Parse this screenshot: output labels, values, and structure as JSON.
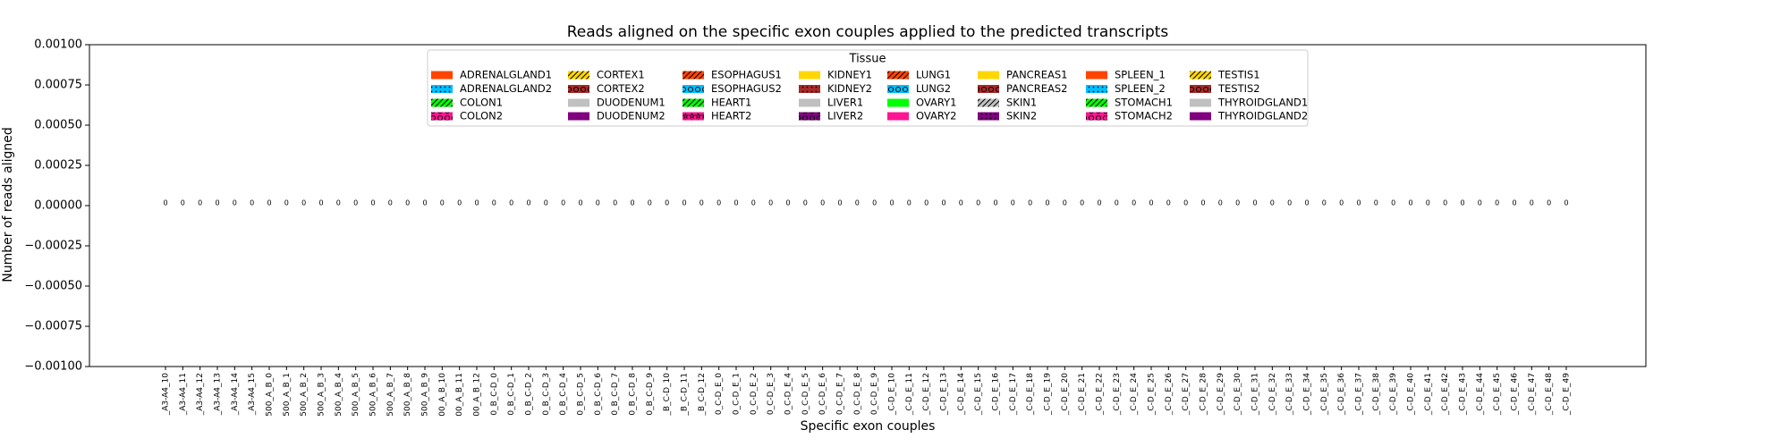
{
  "chart_data": {
    "type": "bar",
    "title": "Reads aligned on the specific exon couples applied to the predicted transcripts",
    "x_label": "Specific exon couples",
    "y_label": "Number of reads aligned",
    "categories": [
      "_A3-A4_10",
      "_A3-A4_11",
      "_A3-A4_12",
      "_A3-A4_13",
      "_A3-A4_14",
      "_A3-A4_15",
      "500_A_B_0",
      "500_A_B_1",
      "500_A_B_2",
      "500_A_B_3",
      "500_A_B_4",
      "500_A_B_5",
      "500_A_B_6",
      "500_A_B_7",
      "500_A_B_8",
      "500_A_B_9",
      "00_A_B_10",
      "00_A_B_11",
      "00_A_B_12",
      "0_B_C-D_0",
      "0_B_C-D_1",
      "0_B_C-D_2",
      "0_B_C-D_3",
      "0_B_C-D_4",
      "0_B_C-D_5",
      "0_B_C-D_6",
      "0_B_C-D_7",
      "0_B_C-D_8",
      "0_B_C-D_9",
      "_B_C-D_10",
      "_B_C-D_11",
      "_B_C-D_12",
      "0_C-D_E_0",
      "0_C-D_E_1",
      "0_C-D_E_2",
      "0_C-D_E_3",
      "0_C-D_E_4",
      "0_C-D_E_5",
      "0_C-D_E_6",
      "0_C-D_E_7",
      "0_C-D_E_8",
      "0_C-D_E_9",
      "_C-D_E_10",
      "_C-D_E_11",
      "_C-D_E_12",
      "_C-D_E_13",
      "_C-D_E_14",
      "_C-D_E_15",
      "_C-D_E_16",
      "_C-D_E_17",
      "_C-D_E_18",
      "_C-D_E_19",
      "_C-D_E_20",
      "_C-D_E_21",
      "_C-D_E_22",
      "_C-D_E_23",
      "_C-D_E_24",
      "_C-D_E_25",
      "_C-D_E_26",
      "_C-D_E_27",
      "_C-D_E_28",
      "_C-D_E_29",
      "_C-D_E_30",
      "_C-D_E_31",
      "_C-D_E_32",
      "_C-D_E_33",
      "_C-D_E_34",
      "_C-D_E_35",
      "_C-D_E_36",
      "_C-D_E_37",
      "_C-D_E_38",
      "_C-D_E_39",
      "_C-D_E_40",
      "_C-D_E_41",
      "_C-D_E_42",
      "_C-D_E_43",
      "_C-D_E_44",
      "_C-D_E_45",
      "_C-D_E_46",
      "_C-D_E_47",
      "_C-D_E_48",
      "_C-D_E_49"
    ],
    "values": [
      0,
      0,
      0,
      0,
      0,
      0,
      0,
      0,
      0,
      0,
      0,
      0,
      0,
      0,
      0,
      0,
      0,
      0,
      0,
      0,
      0,
      0,
      0,
      0,
      0,
      0,
      0,
      0,
      0,
      0,
      0,
      0,
      0,
      0,
      0,
      0,
      0,
      0,
      0,
      0,
      0,
      0,
      0,
      0,
      0,
      0,
      0,
      0,
      0,
      0,
      0,
      0,
      0,
      0,
      0,
      0,
      0,
      0,
      0,
      0,
      0,
      0,
      0,
      0,
      0,
      0,
      0,
      0,
      0,
      0,
      0,
      0,
      0,
      0,
      0,
      0,
      0,
      0,
      0,
      0,
      0,
      0
    ],
    "value_labels": [
      "0",
      "0",
      "0",
      "0",
      "0",
      "0",
      "0",
      "0",
      "0",
      "0",
      "0",
      "0",
      "0",
      "0",
      "0",
      "0",
      "0",
      "0",
      "0",
      "0",
      "0",
      "0",
      "0",
      "0",
      "0",
      "0",
      "0",
      "0",
      "0",
      "0",
      "0",
      "0",
      "0",
      "0",
      "0",
      "0",
      "0",
      "0",
      "0",
      "0",
      "0",
      "0",
      "0",
      "0",
      "0",
      "0",
      "0",
      "0",
      "0",
      "0",
      "0",
      "0",
      "0",
      "0",
      "0",
      "0",
      "0",
      "0",
      "0",
      "0",
      "0",
      "0",
      "0",
      "0",
      "0",
      "0",
      "0",
      "0",
      "0",
      "0",
      "0",
      "0",
      "0",
      "0",
      "0",
      "0",
      "0",
      "0",
      "0",
      "0",
      "0",
      "0"
    ],
    "ylim": [
      -0.001,
      0.001
    ],
    "yticks": [
      {
        "value": -0.001,
        "label": "−0.00100"
      },
      {
        "value": -0.00075,
        "label": "−0.00075"
      },
      {
        "value": -0.0005,
        "label": "−0.00050"
      },
      {
        "value": -0.00025,
        "label": "−0.00025"
      },
      {
        "value": 0,
        "label": "0.00000"
      },
      {
        "value": 0.00025,
        "label": "0.00025"
      },
      {
        "value": 0.0005,
        "label": "0.00050"
      },
      {
        "value": 0.00075,
        "label": "0.00075"
      },
      {
        "value": 0.001,
        "label": "0.00100"
      }
    ],
    "legend": {
      "title": "Tissue",
      "position": "upper center",
      "entries": [
        {
          "name": "ADRENALGLAND1",
          "color": "#ff4500",
          "hatch": ""
        },
        {
          "name": "ADRENALGLAND2",
          "color": "#00bfff",
          "hatch": "."
        },
        {
          "name": "COLON1",
          "color": "#00ff00",
          "hatch": "/"
        },
        {
          "name": "COLON2",
          "color": "#ff1493",
          "hatch": "o"
        },
        {
          "name": "CORTEX1",
          "color": "#ffd700",
          "hatch": "/"
        },
        {
          "name": "CORTEX2",
          "color": "#a52a2a",
          "hatch": "o"
        },
        {
          "name": "DUODENUM1",
          "color": "#c0c0c0",
          "hatch": ""
        },
        {
          "name": "DUODENUM2",
          "color": "#800080",
          "hatch": ""
        },
        {
          "name": "ESOPHAGUS1",
          "color": "#ff4500",
          "hatch": "/"
        },
        {
          "name": "ESOPHAGUS2",
          "color": "#00bfff",
          "hatch": "o"
        },
        {
          "name": "HEART1",
          "color": "#00ff00",
          "hatch": "/"
        },
        {
          "name": "HEART2",
          "color": "#ff1493",
          "hatch": "*"
        },
        {
          "name": "KIDNEY1",
          "color": "#ffd700",
          "hatch": ""
        },
        {
          "name": "KIDNEY2",
          "color": "#a52a2a",
          "hatch": "."
        },
        {
          "name": "LIVER1",
          "color": "#c0c0c0",
          "hatch": ""
        },
        {
          "name": "LIVER2",
          "color": "#800080",
          "hatch": "o"
        },
        {
          "name": "LUNG1",
          "color": "#ff4500",
          "hatch": "/"
        },
        {
          "name": "LUNG2",
          "color": "#00bfff",
          "hatch": "o"
        },
        {
          "name": "OVARY1",
          "color": "#00ff00",
          "hatch": ""
        },
        {
          "name": "OVARY2",
          "color": "#ff1493",
          "hatch": ""
        },
        {
          "name": "PANCREAS1",
          "color": "#ffd700",
          "hatch": ""
        },
        {
          "name": "PANCREAS2",
          "color": "#a52a2a",
          "hatch": "o"
        },
        {
          "name": "SKIN1",
          "color": "#c0c0c0",
          "hatch": "/"
        },
        {
          "name": "SKIN2",
          "color": "#800080",
          "hatch": "."
        },
        {
          "name": "SPLEEN_1",
          "color": "#ff4500",
          "hatch": ""
        },
        {
          "name": "SPLEEN_2",
          "color": "#00bfff",
          "hatch": "."
        },
        {
          "name": "STOMACH1",
          "color": "#00ff00",
          "hatch": "/"
        },
        {
          "name": "STOMACH2",
          "color": "#ff1493",
          "hatch": "o"
        },
        {
          "name": "TESTIS1",
          "color": "#ffd700",
          "hatch": "/"
        },
        {
          "name": "TESTIS2",
          "color": "#a52a2a",
          "hatch": "o"
        },
        {
          "name": "THYROIDGLAND1",
          "color": "#c0c0c0",
          "hatch": ""
        },
        {
          "name": "THYROIDGLAND2",
          "color": "#800080",
          "hatch": ""
        }
      ]
    }
  }
}
